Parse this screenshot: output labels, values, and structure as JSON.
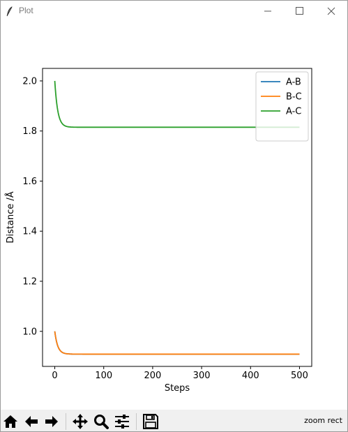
{
  "window": {
    "title": "Plot",
    "icon": "feather-icon",
    "controls": [
      "minimize-icon",
      "maximize-icon",
      "close-icon"
    ]
  },
  "toolbar": {
    "buttons": [
      {
        "icon": "home-icon"
      },
      {
        "icon": "arrow-left-icon"
      },
      {
        "icon": "arrow-right-icon"
      },
      {
        "icon": "pan-icon"
      },
      {
        "icon": "zoom-icon"
      },
      {
        "icon": "configure-subplots-icon"
      },
      {
        "icon": "save-icon"
      }
    ],
    "status": "zoom rect"
  },
  "colors": {
    "A-B": "#1f77b4",
    "B-C": "#ff7f0e",
    "A-C": "#2ca02c"
  },
  "chart_data": {
    "type": "line",
    "xlabel": "Steps",
    "ylabel": "Distance /Å",
    "xlim": [
      -25,
      525
    ],
    "ylim": [
      0.86,
      2.05
    ],
    "xticks": [
      0,
      100,
      200,
      300,
      400,
      500
    ],
    "xtick_labels": [
      "0",
      "100",
      "200",
      "300",
      "400",
      "500"
    ],
    "yticks": [
      1.0,
      1.2,
      1.4,
      1.6,
      1.8,
      2.0
    ],
    "ytick_labels": [
      "1.0",
      "1.2",
      "1.4",
      "1.6",
      "1.8",
      "2.0"
    ],
    "grid": false,
    "legend_position": "top-right",
    "series": [
      {
        "name": "A-B",
        "start": 1.0,
        "end": 0.909,
        "decay_steps": 6,
        "x_range": [
          0,
          500
        ]
      },
      {
        "name": "B-C",
        "start": 1.0,
        "end": 0.909,
        "decay_steps": 6,
        "x_range": [
          0,
          500
        ]
      },
      {
        "name": "A-C",
        "start": 2.0,
        "end": 1.815,
        "decay_steps": 6,
        "x_range": [
          0,
          500
        ]
      }
    ]
  }
}
